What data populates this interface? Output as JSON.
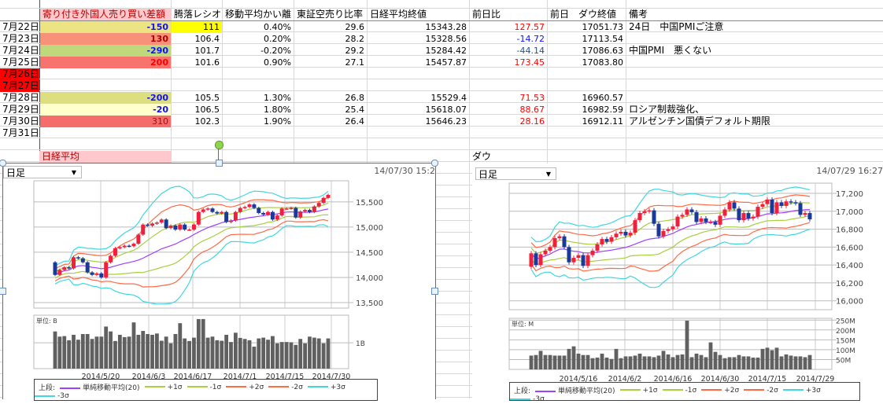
{
  "sheet": {
    "headers": [
      "寄り付き外国人売り買い差額",
      "腾落レシオ",
      "移動平均かい離",
      "東証空売り比率",
      "日経平均終値",
      "前日比",
      "前日　ダウ終値",
      "備考"
    ],
    "rows": [
      {
        "date": "7月22日",
        "foreign": "-150",
        "ratio": "111",
        "deviation": "0.40%",
        "short": "29.6",
        "nikkei": "15343.28",
        "change": "127.57",
        "dow": "17051.73",
        "note": "24日　中国PMIご注意"
      },
      {
        "date": "7月23日",
        "foreign": "130",
        "ratio": "106.4",
        "deviation": "0.20%",
        "short": "28.2",
        "nikkei": "15328.56",
        "change": "-14.72",
        "dow": "17113.54",
        "note": ""
      },
      {
        "date": "7月24日",
        "foreign": "-290",
        "ratio": "101.7",
        "deviation": "-0.20%",
        "short": "29.2",
        "nikkei": "15284.42",
        "change": "-44.14",
        "dow": "17086.63",
        "note": "中国PMI　悪くない"
      },
      {
        "date": "7月25日",
        "foreign": "200",
        "ratio": "101.6",
        "deviation": "0.90%",
        "short": "27.1",
        "nikkei": "15457.87",
        "change": "173.45",
        "dow": "17083.80",
        "note": ""
      },
      {
        "date": "7月26日",
        "foreign": "",
        "ratio": "",
        "deviation": "",
        "short": "",
        "nikkei": "",
        "change": "",
        "dow": "",
        "note": ""
      },
      {
        "date": "7月27日",
        "foreign": "",
        "ratio": "",
        "deviation": "",
        "short": "",
        "nikkei": "",
        "change": "",
        "dow": "",
        "note": ""
      },
      {
        "date": "7月28日",
        "foreign": "-200",
        "ratio": "105.5",
        "deviation": "1.30%",
        "short": "26.8",
        "nikkei": "15529.4",
        "change": "71.53",
        "dow": "16960.57",
        "note": ""
      },
      {
        "date": "7月29日",
        "foreign": "-20",
        "ratio": "106.5",
        "deviation": "1.80%",
        "short": "25.4",
        "nikkei": "15618.07",
        "change": "88.67",
        "dow": "16982.59",
        "note": "ロシア制裁強化、"
      },
      {
        "date": "7月30日",
        "foreign": "310",
        "ratio": "102.3",
        "deviation": "1.90%",
        "short": "26.4",
        "nikkei": "15646.23",
        "change": "28.16",
        "dow": "16912.11",
        "note": "アルゼンチン国債デフォルト期限"
      },
      {
        "date": "7月31日",
        "foreign": "",
        "ratio": "",
        "deviation": "",
        "short": "",
        "nikkei": "",
        "change": "",
        "dow": "",
        "note": ""
      }
    ],
    "styles": {
      "foreign_bg": [
        "#ece482",
        "#f8917a",
        "#c0d87c",
        "#f6736e",
        "",
        "",
        "#dcde80",
        "#ffffcc",
        "#f46c6c",
        ""
      ],
      "foreign_fg": [
        "#1010ff",
        "#b00000",
        "#1010ff",
        "#ff0000",
        "",
        "",
        "#1010ff",
        "#1010ff",
        "#a01010",
        ""
      ],
      "change_fg": [
        "#ff0000",
        "#1010ff",
        "#2050a0",
        "#ff0000",
        "",
        "",
        "#ff0000",
        "#ff0000",
        "#ff0000",
        ""
      ],
      "date_bg": [
        "",
        "",
        "",
        "",
        "#ff0000",
        "#ff0000",
        "",
        "",
        "",
        ""
      ],
      "ratio_bg": [
        "#ffff00",
        "",
        "",
        "",
        "",
        "",
        "",
        "",
        "",
        ""
      ],
      "header_bg": "#ffc8cc",
      "header_fg": "#c00000"
    },
    "nikkei_label": "日経平均",
    "dow_label": "ダウ"
  },
  "chart_data": [
    {
      "type": "candlestick",
      "period_select": "日足",
      "timestamp": "14/07/30 15:2",
      "x_tick_labels": [
        "2014/5/20",
        "2014/6/3",
        "2014/6/17",
        "2014/7/1",
        "2014/7/15",
        "2014/7/30"
      ],
      "y_tick_labels": [
        "15,500",
        "15,000",
        "14,500",
        "14,000",
        "13,500"
      ],
      "y_ticks": [
        15500,
        15000,
        14500,
        14000,
        13500
      ],
      "ylim": [
        13390,
        15920
      ],
      "first_open": 14300,
      "close": [
        14050,
        14150,
        14200,
        14180,
        14400,
        14380,
        14300,
        14100,
        14050,
        14080,
        14000,
        14300,
        14430,
        14580,
        14600,
        14630,
        14620,
        14670,
        14850,
        15050,
        15030,
        15070,
        15090,
        15150,
        14980,
        15030,
        14950,
        15050,
        14950,
        14950,
        15050,
        15300,
        15350,
        15370,
        15300,
        15270,
        15300,
        15100,
        15130,
        15300,
        15380,
        15400,
        15450,
        15380,
        15280,
        15250,
        15300,
        15150,
        15230,
        15370,
        15370,
        15380,
        15190,
        15310,
        15340,
        15300,
        15410,
        15480,
        15580,
        15640
      ],
      "volume_unit_label": "単位: B",
      "volume_tick_labels": [
        "1B"
      ],
      "volume_ticks": [
        1
      ],
      "volume_ylim": [
        0,
        2.07
      ],
      "volume": [
        1.44,
        1.24,
        1.26,
        1.1,
        1.31,
        1.12,
        1.34,
        1.34,
        1.15,
        1.24,
        1.24,
        1.63,
        1.44,
        1.07,
        1.31,
        1.22,
        1.24,
        1.79,
        1.31,
        1.46,
        1.34,
        1.31,
        1.36,
        1.08,
        1.24,
        0.98,
        1.34,
        1.76,
        1.17,
        1.07,
        1.2,
        1.92,
        1.92,
        1.2,
        1.24,
        1.1,
        1.08,
        1.31,
        1.03,
        1.39,
        1.19,
        1.15,
        1.1,
        0.85,
        1.17,
        1.2,
        1.12,
        1.26,
        0.98,
        1.03,
        1.03,
        1.02,
        0.92,
        1.15,
        0.98,
        1.24,
        1.2,
        1.17,
        0.98,
        1.17
      ],
      "legend_prefix": "上段:",
      "legend": [
        "単純移動平均(20)",
        "+1σ",
        "-1σ",
        "+2σ",
        "-2σ",
        "+3σ",
        "-3σ"
      ]
    },
    {
      "type": "candlestick",
      "period_select": "日足",
      "timestamp": "14/07/29 16:27",
      "x_tick_labels": [
        "2014/5/16",
        "2014/6/2",
        "2014/6/16",
        "2014/6/30",
        "2014/7/15",
        "2014/7/29"
      ],
      "y_tick_labels": [
        "17,200",
        "17,000",
        "16,800",
        "16,600",
        "16,400",
        "16,200",
        "16,000"
      ],
      "y_ticks": [
        17200,
        17000,
        16800,
        16600,
        16400,
        16200,
        16000
      ],
      "ylim": [
        15901,
        17314
      ],
      "first_open": 16380,
      "close": [
        16530,
        16400,
        16520,
        16560,
        16600,
        16700,
        16720,
        16600,
        16430,
        16480,
        16510,
        16390,
        16510,
        16560,
        16630,
        16690,
        16660,
        16710,
        16750,
        16770,
        16730,
        16760,
        16900,
        16980,
        17000,
        17010,
        16860,
        16720,
        16780,
        16800,
        16830,
        16940,
        16960,
        17020,
        16990,
        16880,
        16920,
        16880,
        16880,
        16850,
        16950,
        17020,
        17100,
        17030,
        16900,
        16980,
        16920,
        16940,
        17050,
        17080,
        17130,
        16980,
        17100,
        17060,
        17110,
        17100,
        17090,
        16960,
        16980,
        16910
      ],
      "volume_unit_label": "単位: M",
      "volume_tick_labels": [
        "250M",
        "200M",
        "150M",
        "100M",
        "50M"
      ],
      "volume_ticks": [
        250,
        200,
        150,
        100,
        50
      ],
      "volume_ylim": [
        0,
        259
      ],
      "volume": [
        70,
        73,
        94,
        73,
        73,
        70,
        70,
        70,
        104,
        117,
        80,
        73,
        73,
        57,
        60,
        80,
        60,
        53,
        104,
        57,
        66,
        66,
        70,
        80,
        66,
        66,
        62,
        70,
        94,
        76,
        62,
        73,
        76,
        247,
        62,
        80,
        73,
        62,
        137,
        89,
        73,
        57,
        62,
        62,
        73,
        66,
        66,
        60,
        60,
        104,
        110,
        97,
        110,
        66,
        76,
        70,
        66,
        66,
        62,
        73
      ],
      "legend_prefix": "上段:",
      "legend": [
        "単純移動平均(20)",
        "+1σ",
        "-1σ",
        "+2σ",
        "-2σ",
        "+3σ",
        "-3σ"
      ]
    }
  ],
  "colors": {
    "up": "#f0203c",
    "down": "#1a3a9a",
    "sma": "#a040ff",
    "s1": "#a8d040",
    "s2": "#ff6a45",
    "s3": "#40d8e0",
    "volume": "#606060"
  }
}
